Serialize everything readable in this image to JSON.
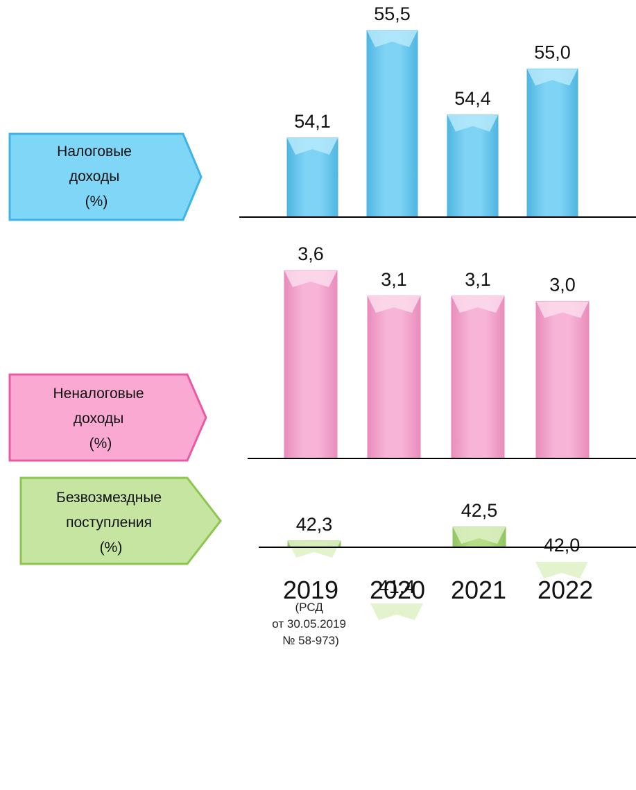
{
  "chart_data": [
    {
      "type": "bar",
      "label_lines": [
        "Налоговые",
        "доходы",
        "(%)"
      ],
      "categories": [
        "2019",
        "2020",
        "2021",
        "2022"
      ],
      "values": [
        54.1,
        55.5,
        54.4,
        55.0
      ],
      "value_labels": [
        "54,1",
        "55,5",
        "54,4",
        "55,0"
      ],
      "colors": {
        "fill": "#7fd3f5",
        "light": "#b6e9fc",
        "dark": "#4fb6e0",
        "label_fill": "#7fd6f7",
        "label_border": "#3fb3e6"
      }
    },
    {
      "type": "bar",
      "label_lines": [
        "Неналоговые",
        "доходы",
        "(%)"
      ],
      "categories": [
        "2019",
        "2020",
        "2021",
        "2022"
      ],
      "values": [
        3.6,
        3.1,
        3.1,
        3.0
      ],
      "value_labels": [
        "3,6",
        "3,1",
        "3,1",
        "3,0"
      ],
      "colors": {
        "fill": "#f7b4d6",
        "light": "#fcdcec",
        "dark": "#e98cbb",
        "label_fill": "#f9a9d2",
        "label_border": "#e85aa6"
      }
    },
    {
      "type": "bar",
      "label_lines": [
        "Безвозмездные",
        "поступления",
        "(%)"
      ],
      "categories": [
        "2019",
        "2020",
        "2021",
        "2022"
      ],
      "values": [
        42.3,
        41.4,
        42.5,
        42.0
      ],
      "value_labels": [
        "42,3",
        "41,4",
        "42,5",
        "42,0"
      ],
      "colors": {
        "fill": "#b5dd87",
        "light": "#ddf1c4",
        "dark": "#93c463",
        "label_fill": "#c5e5a0",
        "label_border": "#8dc54f"
      }
    }
  ],
  "x_axis": {
    "years": [
      "2019",
      "2020",
      "2021",
      "2022"
    ],
    "note_lines": [
      "(РСД",
      "от 30.05.2019",
      "№ 58-973)"
    ]
  }
}
